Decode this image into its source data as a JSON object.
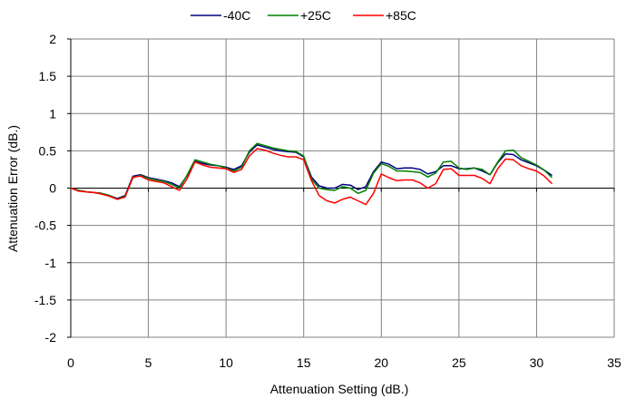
{
  "chart_data": {
    "type": "line",
    "title": "",
    "xlabel": "Attenuation Setting (dB.)",
    "ylabel": "Attenuation Error (dB.)",
    "xlim": [
      0,
      35
    ],
    "ylim": [
      -2,
      2
    ],
    "xticks": [
      0,
      5,
      10,
      15,
      20,
      25,
      30,
      35
    ],
    "yticks": [
      2,
      1.5,
      1,
      0.5,
      0,
      -0.5,
      -1,
      -1.5,
      -2
    ],
    "xtick_labels": [
      "0",
      "5",
      "10",
      "15",
      "20",
      "25",
      "30",
      "35"
    ],
    "ytick_labels": [
      "2",
      "1.5",
      "1",
      "0.5",
      "0",
      "-0.5",
      "-1",
      "-1.5",
      "-2"
    ],
    "grid": true,
    "legend_position": "top",
    "x": [
      0,
      0.5,
      1,
      1.5,
      2,
      2.5,
      3,
      3.5,
      4,
      4.5,
      5,
      5.5,
      6,
      6.5,
      7,
      7.5,
      8,
      8.5,
      9,
      9.5,
      10,
      10.5,
      11,
      11.5,
      12,
      12.5,
      13,
      13.5,
      14,
      14.5,
      15,
      15.5,
      16,
      16.5,
      17,
      17.5,
      18,
      18.5,
      19,
      19.5,
      20,
      20.5,
      21,
      21.5,
      22,
      22.5,
      23,
      23.5,
      24,
      24.5,
      25,
      25.5,
      26,
      26.5,
      27,
      27.5,
      28,
      28.5,
      29,
      29.5,
      30,
      30.5,
      31
    ],
    "series": [
      {
        "name": "-40C",
        "color": "#000080",
        "values": [
          0,
          -0.03,
          -0.05,
          -0.06,
          -0.07,
          -0.1,
          -0.14,
          -0.1,
          0.16,
          0.18,
          0.14,
          0.12,
          0.1,
          0.07,
          0.02,
          0.17,
          0.36,
          0.33,
          0.31,
          0.3,
          0.28,
          0.25,
          0.3,
          0.48,
          0.58,
          0.55,
          0.52,
          0.5,
          0.49,
          0.48,
          0.42,
          0.15,
          0.03,
          0,
          0,
          0.05,
          0.04,
          -0.02,
          0.02,
          0.22,
          0.35,
          0.32,
          0.26,
          0.27,
          0.27,
          0.25,
          0.19,
          0.22,
          0.3,
          0.3,
          0.26,
          0.26,
          0.27,
          0.23,
          0.18,
          0.34,
          0.46,
          0.45,
          0.38,
          0.34,
          0.3,
          0.24,
          0.17
        ]
      },
      {
        "name": "+25C",
        "color": "#008000",
        "values": [
          0,
          -0.03,
          -0.05,
          -0.06,
          -0.07,
          -0.1,
          -0.15,
          -0.11,
          0.14,
          0.17,
          0.13,
          0.11,
          0.09,
          0.05,
          0,
          0.18,
          0.38,
          0.35,
          0.32,
          0.3,
          0.27,
          0.23,
          0.28,
          0.5,
          0.6,
          0.57,
          0.54,
          0.52,
          0.5,
          0.49,
          0.43,
          0.12,
          0,
          -0.02,
          -0.03,
          0.02,
          0,
          -0.07,
          -0.03,
          0.2,
          0.33,
          0.29,
          0.23,
          0.23,
          0.22,
          0.21,
          0.15,
          0.2,
          0.35,
          0.36,
          0.27,
          0.25,
          0.27,
          0.25,
          0.18,
          0.35,
          0.5,
          0.51,
          0.41,
          0.36,
          0.31,
          0.24,
          0.14
        ]
      },
      {
        "name": "+85C",
        "color": "#ff0000",
        "values": [
          0,
          -0.04,
          -0.05,
          -0.06,
          -0.08,
          -0.11,
          -0.15,
          -0.12,
          0.15,
          0.16,
          0.11,
          0.09,
          0.07,
          0.02,
          -0.03,
          0.13,
          0.35,
          0.31,
          0.28,
          0.27,
          0.26,
          0.21,
          0.25,
          0.43,
          0.53,
          0.51,
          0.47,
          0.44,
          0.42,
          0.42,
          0.38,
          0.1,
          -0.1,
          -0.17,
          -0.2,
          -0.15,
          -0.12,
          -0.17,
          -0.22,
          -0.07,
          0.19,
          0.14,
          0.1,
          0.11,
          0.11,
          0.07,
          0,
          0.06,
          0.25,
          0.26,
          0.17,
          0.17,
          0.17,
          0.13,
          0.06,
          0.26,
          0.39,
          0.38,
          0.3,
          0.26,
          0.23,
          0.16,
          0.06
        ]
      }
    ]
  }
}
